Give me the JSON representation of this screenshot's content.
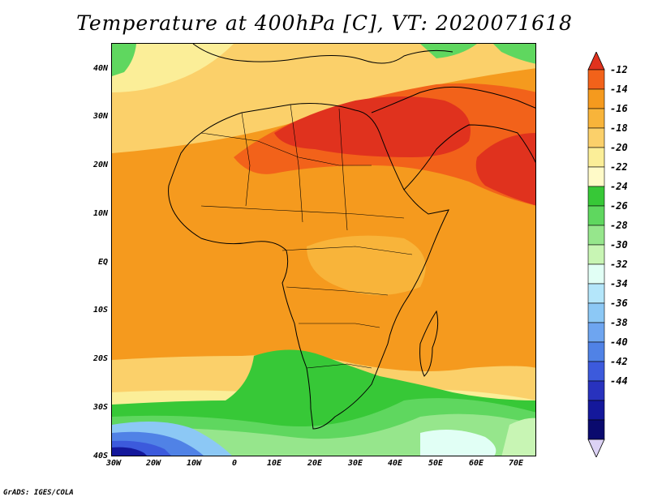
{
  "title": "Temperature at 400hPa [C], VT: 2020071618",
  "credit": "GrADS: IGES/COLA",
  "map": {
    "lat_ticks": [
      "40N",
      "30N",
      "20N",
      "10N",
      "EQ",
      "10S",
      "20S",
      "30S",
      "40S"
    ],
    "lon_ticks": [
      "30W",
      "20W",
      "10W",
      "0",
      "10E",
      "20E",
      "30E",
      "40E",
      "50E",
      "60E",
      "70E"
    ],
    "extent": {
      "lon_min": -30,
      "lon_max": 76,
      "lat_min": -40,
      "lat_max": 45
    }
  },
  "colorbar": {
    "labels": [
      "-12",
      "-14",
      "-16",
      "-18",
      "-20",
      "-22",
      "-24",
      "-26",
      "-28",
      "-30",
      "-32",
      "-34",
      "-36",
      "-38",
      "-40",
      "-42",
      "-44"
    ],
    "colors": [
      "#e0321e",
      "#f2621a",
      "#f59a1e",
      "#f8b43a",
      "#fbd06a",
      "#fbee98",
      "#fffac8",
      "#37c837",
      "#5fd75f",
      "#96e68c",
      "#c8f5b4",
      "#e1fff5",
      "#b4e6fa",
      "#8cc8f5",
      "#6ea5f0",
      "#5082e6",
      "#3c5adc",
      "#2832be",
      "#14189b",
      "#0a0a6e",
      "#dcd2f5"
    ]
  }
}
